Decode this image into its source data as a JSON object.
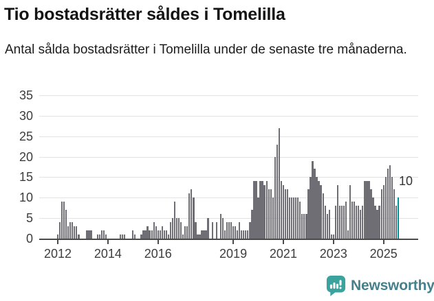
{
  "title": "Tio bostadsrätter såldes i Tomelilla",
  "subtitle": "Antal sålda bostadsrätter i Tomelilla under de senaste tre månaderna.",
  "footer": {
    "brand": "Newsworthy",
    "logo_icon": "speech-bubble-bar-chart-icon"
  },
  "colors": {
    "bar": "#6f6e74",
    "highlight": "#00939b",
    "grid": "#e2e2e2",
    "axis": "#4a4a4a",
    "axis_text": "#3d3d3d",
    "logo_icon": "#3ba39e",
    "logo_text": "#45808d"
  },
  "chart_data": {
    "type": "bar",
    "title": "Tio bostadsrätter såldes i Tomelilla",
    "subtitle": "Antal sålda bostadsrätter i Tomelilla under de senaste tre månaderna.",
    "xlabel": "",
    "ylabel": "",
    "grid": true,
    "ylim": [
      0,
      35
    ],
    "y_ticks": [
      0,
      5,
      10,
      15,
      20,
      25,
      30,
      35
    ],
    "x_tick_labels": [
      "2012",
      "2014",
      "2016",
      "2019",
      "2021",
      "2023",
      "2025"
    ],
    "x_tick_month_indices": [
      0,
      24,
      48,
      84,
      108,
      132,
      156
    ],
    "start_month": "2012-01",
    "frequency": "monthly (rolling 3-month sales)",
    "values": [
      1,
      4,
      9,
      9,
      7,
      3,
      4,
      4,
      3,
      3,
      1,
      0,
      0,
      0,
      2,
      2,
      2,
      0,
      0,
      1,
      1,
      2,
      2,
      1,
      0,
      0,
      0,
      0,
      0,
      0,
      1,
      1,
      1,
      0,
      0,
      0,
      2,
      1,
      0,
      0,
      1,
      2,
      2,
      3,
      2,
      2,
      4,
      3,
      2,
      2,
      3,
      2,
      2,
      1,
      4,
      5,
      9,
      5,
      5,
      4,
      1,
      3,
      3,
      11,
      12,
      10,
      4,
      1,
      1,
      2,
      2,
      2,
      5,
      0,
      4,
      0,
      4,
      0,
      6,
      5,
      2,
      4,
      4,
      4,
      3,
      3,
      2,
      4,
      2,
      2,
      2,
      2,
      4,
      7,
      14,
      14,
      10,
      14,
      14,
      13,
      14,
      12,
      12,
      10,
      20,
      23,
      27,
      14,
      13,
      12,
      12,
      10,
      10,
      10,
      10,
      10,
      9,
      6,
      6,
      6,
      12,
      15,
      19,
      17,
      15,
      14,
      13,
      11,
      8,
      6,
      7,
      1,
      1,
      8,
      13,
      8,
      8,
      8,
      9,
      2,
      13,
      9,
      9,
      8,
      8,
      7,
      8,
      14,
      14,
      14,
      12,
      10,
      8,
      7,
      8,
      12,
      13,
      15,
      17,
      18,
      15,
      12,
      8,
      10
    ],
    "highlight": {
      "index": 163,
      "value": 10,
      "label": "10",
      "color": "#00939b"
    },
    "legend": null
  }
}
